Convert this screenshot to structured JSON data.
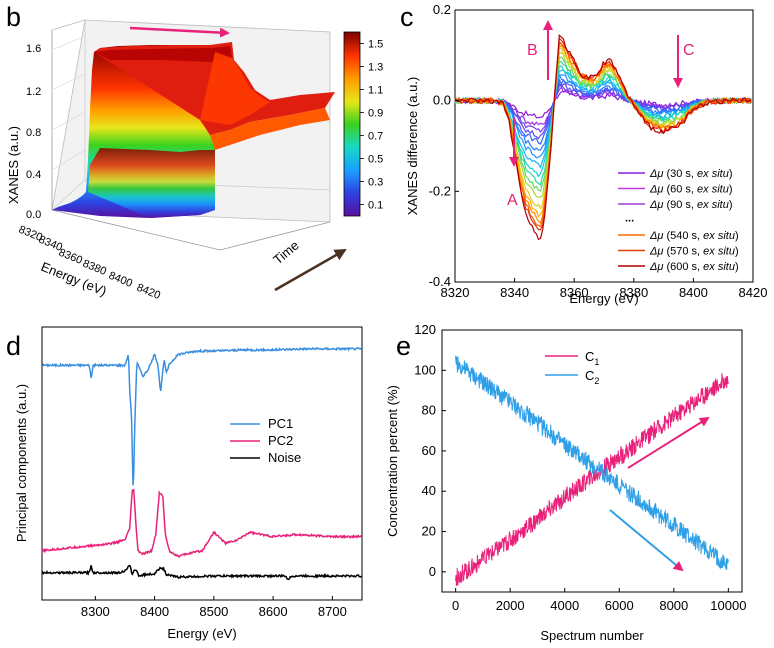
{
  "chart_data": [
    {
      "panel": "b",
      "type": "surface",
      "ylabel": "XANES (a.u.)",
      "xlabel": "Energy (eV)",
      "zlabel": "Time",
      "x_ticks": [
        "8320",
        "8340",
        "8360",
        "8380",
        "8400",
        "8420"
      ],
      "z_ticks": [
        "0.0",
        "0.4",
        "0.8",
        "1.2",
        "1.6"
      ],
      "colorbar_ticks": [
        "1.5",
        "1.3",
        "1.1",
        "0.9",
        "0.7",
        "0.5",
        "0.3",
        "0.1"
      ],
      "colorbar_range": [
        0,
        1.6
      ],
      "colors": [
        "#5b0f9e",
        "#2f3fe0",
        "#1aa0ff",
        "#18d6c8",
        "#3ad21f",
        "#e6e61a",
        "#ffa000",
        "#ff3300",
        "#7a0000"
      ]
    },
    {
      "panel": "c",
      "type": "line",
      "xlabel": "Energy (eV)",
      "ylabel": "XANES difference (a.u.)",
      "xlim": [
        8320,
        8420
      ],
      "ylim": [
        -0.4,
        0.2
      ],
      "x_ticks": [
        "8320",
        "8340",
        "8360",
        "8380",
        "8400",
        "8420"
      ],
      "y_ticks": [
        "0.2",
        "0.0",
        "-0.2",
        "-0.4"
      ],
      "annotations": [
        "A",
        "B",
        "C"
      ],
      "legend": [
        {
          "pre": "Δμ",
          "label": "(30 s, ",
          "em": "ex situ",
          "post": ")",
          "color": "#8a1fd8",
          "scale": 0.12
        },
        {
          "pre": "Δμ",
          "label": "(60 s, ",
          "em": "ex situ",
          "post": ")",
          "color": "#c03ae0",
          "scale": 0.22
        },
        {
          "pre": "Δμ",
          "label": "(90 s, ",
          "em": "ex situ",
          "post": ")",
          "color": "#a43cd8",
          "scale": 0.3
        },
        {
          "pre": "",
          "label": "...",
          "em": "",
          "post": "",
          "color": "#000000",
          "scale": null
        },
        {
          "pre": "Δμ",
          "label": "(540 s, ",
          "em": "ex situ",
          "post": ")",
          "color": "#ff6a00",
          "scale": 0.92
        },
        {
          "pre": "Δμ",
          "label": "(570 s, ",
          "em": "ex situ",
          "post": ")",
          "color": "#e83a10",
          "scale": 0.96
        },
        {
          "pre": "Δμ",
          "label": "(600 s, ",
          "em": "ex situ",
          "post": ")",
          "color": "#b00000",
          "scale": 1.0
        }
      ],
      "series_scales": [
        0.12,
        0.18,
        0.22,
        0.26,
        0.3,
        0.36,
        0.42,
        0.48,
        0.54,
        0.6,
        0.66,
        0.72,
        0.78,
        0.84,
        0.88,
        0.92,
        0.96,
        1.0
      ],
      "curve_template": {
        "x": [
          8320,
          8326,
          8332,
          8336,
          8338,
          8340,
          8342,
          8344,
          8346,
          8348,
          8349,
          8350,
          8352,
          8354,
          8355,
          8356,
          8358,
          8360,
          8362,
          8364,
          8366,
          8368,
          8370,
          8372,
          8374,
          8376,
          8378,
          8380,
          8382,
          8384,
          8386,
          8388,
          8390,
          8392,
          8394,
          8396,
          8398,
          8400,
          8404,
          8410,
          8420
        ],
        "y": [
          0.0,
          0.0,
          0.0,
          -0.005,
          -0.04,
          -0.12,
          -0.2,
          -0.25,
          -0.28,
          -0.3,
          -0.3,
          -0.26,
          -0.12,
          0.06,
          0.145,
          0.14,
          0.11,
          0.09,
          0.06,
          0.055,
          0.05,
          0.06,
          0.085,
          0.09,
          0.07,
          0.04,
          0.01,
          -0.01,
          -0.03,
          -0.05,
          -0.06,
          -0.065,
          -0.07,
          -0.065,
          -0.06,
          -0.05,
          -0.035,
          -0.02,
          -0.005,
          0.0,
          0.0
        ]
      }
    },
    {
      "panel": "d",
      "type": "line",
      "xlabel": "Energy (eV)",
      "ylabel": "Principal components (a.u.)",
      "xlim": [
        8210,
        8750
      ],
      "x_ticks": [
        "8300",
        "8400",
        "8500",
        "8600",
        "8700"
      ],
      "x_tick_values": [
        8300,
        8400,
        8500,
        8600,
        8700
      ],
      "series": [
        {
          "name": "PC1",
          "color": "#3a8fe0",
          "x": [
            8210,
            8280,
            8290,
            8293,
            8296,
            8330,
            8350,
            8356,
            8358,
            8361,
            8364,
            8367,
            8370,
            8380,
            8388,
            8395,
            8400,
            8406,
            8410,
            8416,
            8420,
            8425,
            8440,
            8470,
            8500,
            8550,
            8600,
            8650,
            8700,
            8750
          ],
          "y": [
            0.95,
            0.95,
            0.95,
            0.82,
            0.95,
            0.95,
            0.95,
            1.05,
            0.7,
            0.5,
            -0.25,
            0.5,
            0.98,
            0.85,
            0.9,
            0.98,
            1.05,
            0.95,
            0.7,
            1.0,
            0.88,
            0.96,
            1.05,
            1.08,
            1.08,
            1.09,
            1.09,
            1.1,
            1.1,
            1.1
          ]
        },
        {
          "name": "PC2",
          "color": "#e8227a",
          "x": [
            8210,
            8260,
            8300,
            8330,
            8350,
            8358,
            8362,
            8365,
            8369,
            8372,
            8380,
            8395,
            8402,
            8408,
            8414,
            8418,
            8425,
            8440,
            8460,
            8480,
            8500,
            8520,
            8540,
            8560,
            8580,
            8600,
            8640,
            8700,
            8750
          ],
          "y": [
            -0.75,
            -0.72,
            -0.7,
            -0.68,
            -0.65,
            -0.55,
            -0.2,
            -0.2,
            -0.55,
            -0.75,
            -0.78,
            -0.75,
            -0.6,
            -0.22,
            -0.25,
            -0.6,
            -0.75,
            -0.8,
            -0.77,
            -0.75,
            -0.58,
            -0.68,
            -0.65,
            -0.58,
            -0.6,
            -0.62,
            -0.6,
            -0.62,
            -0.62
          ]
        },
        {
          "name": "Noise",
          "color": "#000000",
          "x": [
            8210,
            8290,
            8293,
            8296,
            8340,
            8352,
            8358,
            8362,
            8368,
            8374,
            8380,
            8400,
            8410,
            8416,
            8420,
            8440,
            8500,
            8620,
            8626,
            8632,
            8700,
            8750
          ],
          "y": [
            -0.95,
            -0.95,
            -0.88,
            -0.95,
            -0.95,
            -0.93,
            -0.88,
            -0.96,
            -0.92,
            -0.98,
            -0.97,
            -0.96,
            -0.9,
            -0.92,
            -0.97,
            -0.99,
            -0.98,
            -0.98,
            -1.01,
            -0.98,
            -0.98,
            -0.98
          ]
        }
      ],
      "ylim": [
        -1.2,
        1.3
      ]
    },
    {
      "panel": "e",
      "type": "line",
      "xlabel": "Spectrum number",
      "ylabel": "Concentration percent (%)",
      "xlim": [
        -500,
        10500
      ],
      "ylim": [
        -10,
        120
      ],
      "x_ticks": [
        "0",
        "2000",
        "4000",
        "6000",
        "8000",
        "10000"
      ],
      "x_tick_values": [
        0,
        2000,
        4000,
        6000,
        8000,
        10000
      ],
      "y_ticks": [
        "0",
        "20",
        "40",
        "60",
        "80",
        "100",
        "120"
      ],
      "y_tick_values": [
        0,
        20,
        40,
        60,
        80,
        100,
        120
      ],
      "series": [
        {
          "name": "C",
          "sub": "1",
          "color": "#e8227a",
          "x": [
            0,
            1000,
            2000,
            3000,
            4000,
            5000,
            6000,
            7000,
            8000,
            9000,
            10000
          ],
          "y": [
            -3,
            6,
            16,
            26,
            37,
            47,
            57,
            67,
            77,
            87,
            96
          ]
        },
        {
          "name": "C",
          "sub": "2",
          "color": "#2f9fe8",
          "x": [
            0,
            1000,
            2000,
            3000,
            4000,
            5000,
            6000,
            7000,
            8000,
            9000,
            10000
          ],
          "y": [
            104,
            94,
            84,
            74,
            63,
            53,
            43,
            33,
            23,
            13,
            3
          ]
        }
      ]
    }
  ],
  "panels": {
    "b": "b",
    "c": "c",
    "d": "d",
    "e": "e"
  },
  "ann": {
    "A": "A",
    "B": "B",
    "C": "C"
  }
}
